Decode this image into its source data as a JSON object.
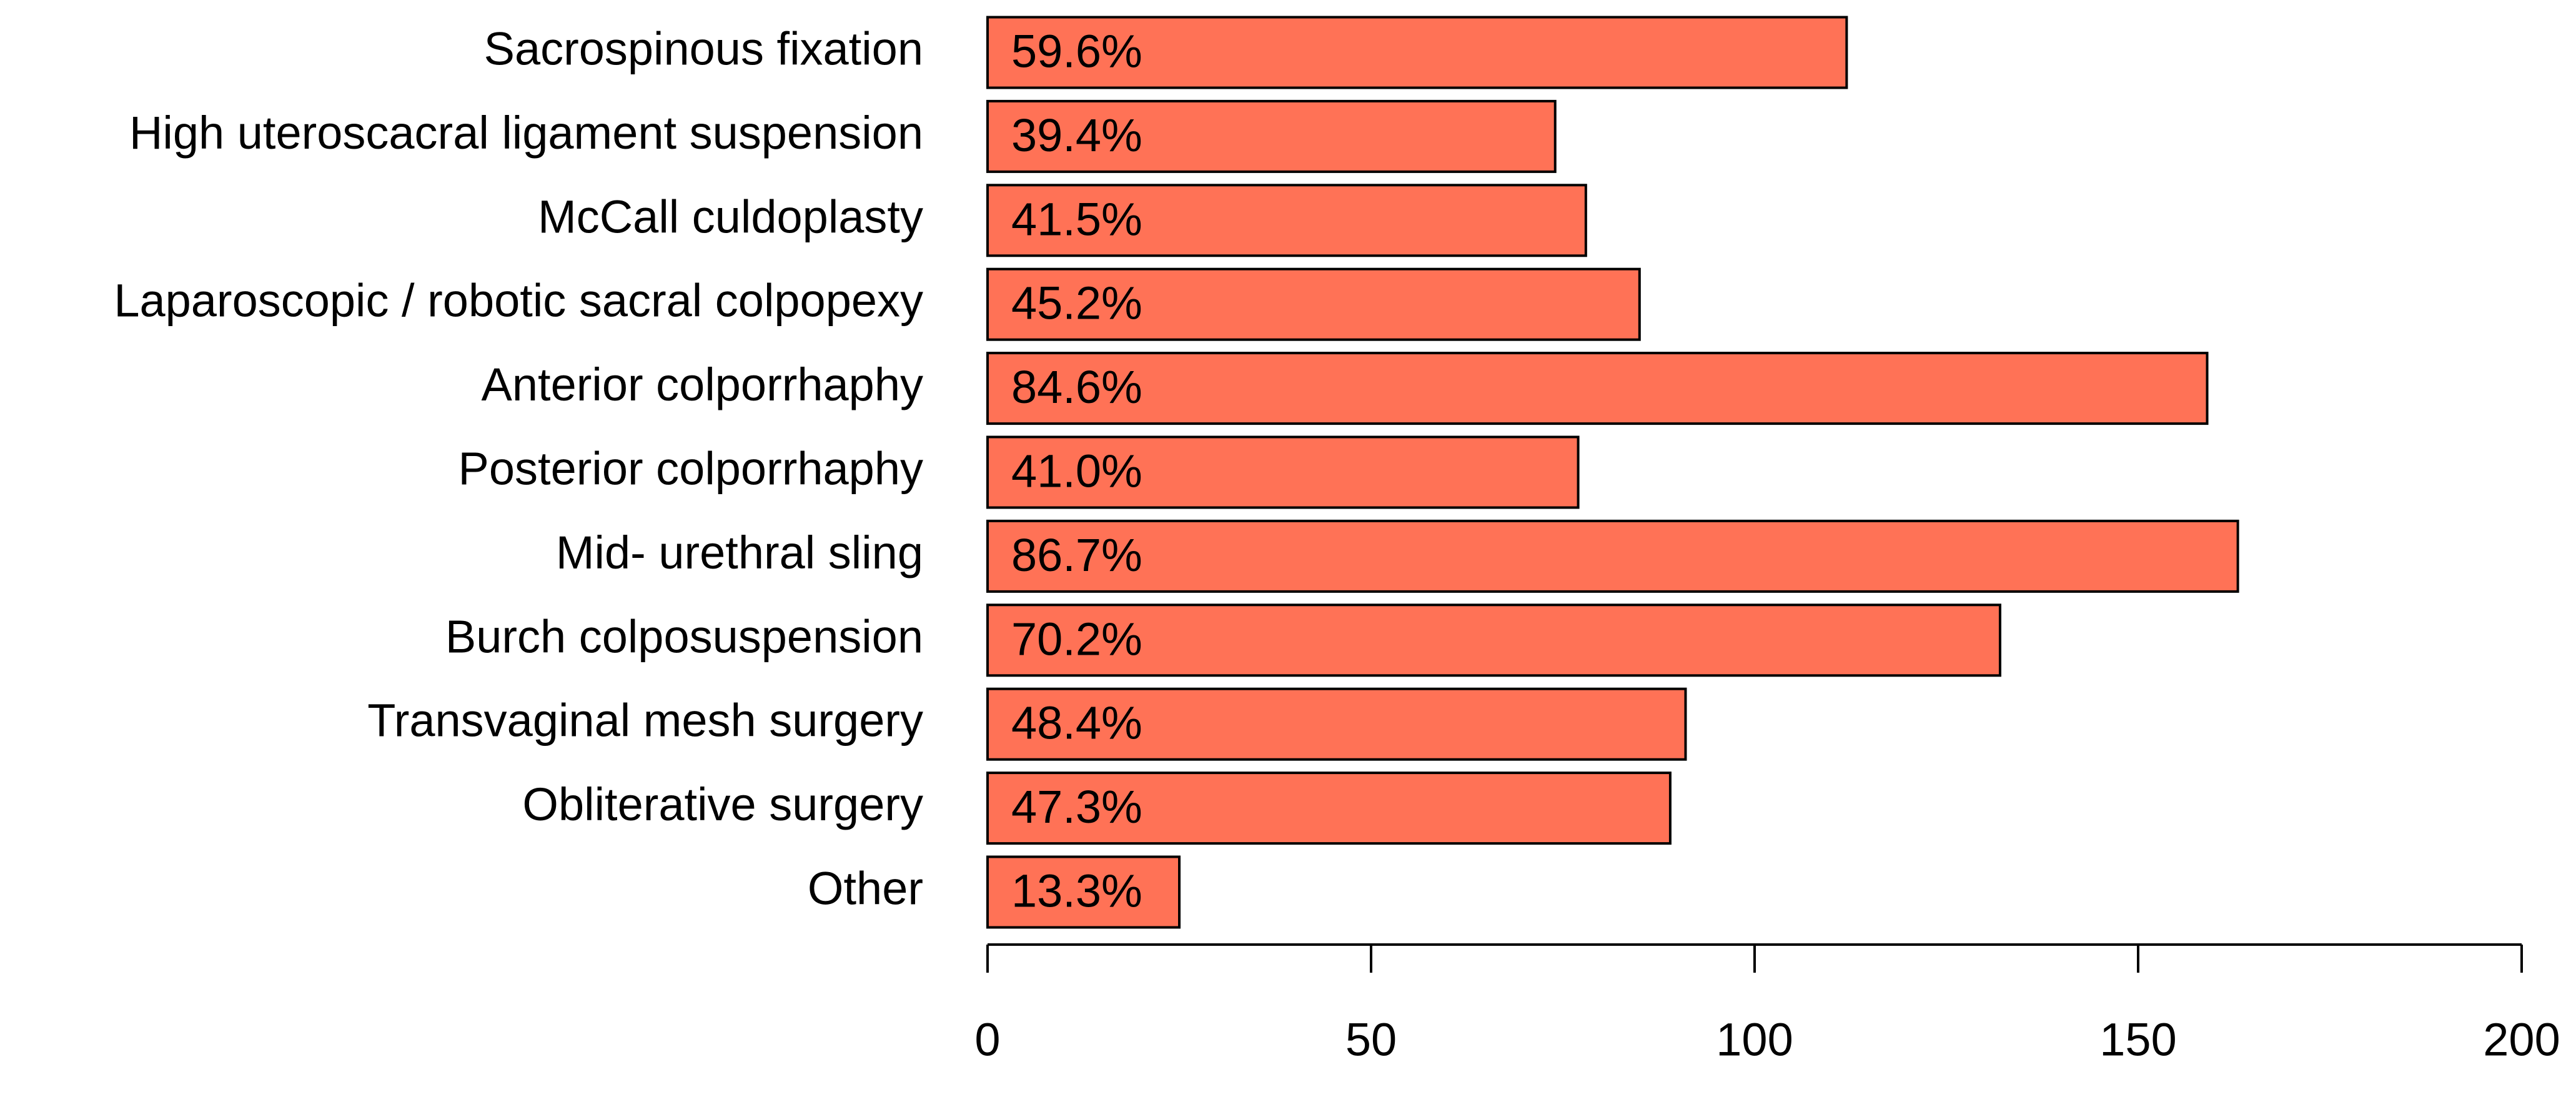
{
  "chart_data": {
    "type": "barh",
    "categories": [
      "Sacrospinous fixation",
      "High uteroscacral ligament suspension",
      "McCall culdoplasty",
      "Laparoscopic / robotic sacral colpopexy",
      "Anterior colporrhaphy",
      "Posterior colporrhaphy",
      "Mid- urethral sling",
      "Burch colposuspension",
      "Transvaginal mesh surgery",
      "Obliterative surgery",
      "Other"
    ],
    "values": [
      112,
      74,
      78,
      85,
      159,
      77,
      163,
      132,
      91,
      89,
      25
    ],
    "bar_labels": [
      "59.6%",
      "39.4%",
      "41.5%",
      "45.2%",
      "84.6%",
      "41.0%",
      "86.7%",
      "70.2%",
      "48.4%",
      "47.3%",
      "13.3%"
    ],
    "color": "#ff7256",
    "xlim": [
      0,
      200
    ],
    "xticks": [
      0,
      50,
      100,
      150,
      200
    ],
    "grid": false
  }
}
